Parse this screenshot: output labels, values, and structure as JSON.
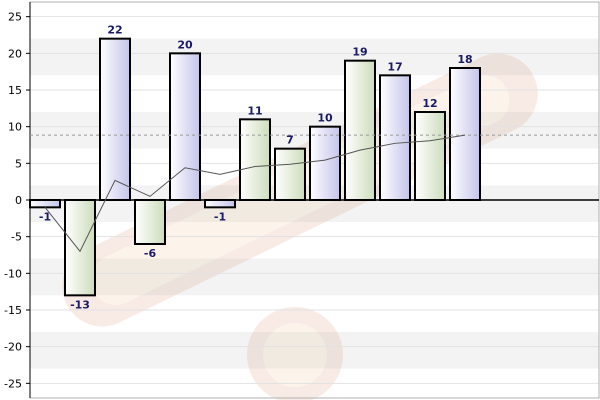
{
  "chart_data": {
    "type": "bar",
    "title": "",
    "xlabel": "",
    "ylabel": "",
    "ylim": [
      -27,
      27
    ],
    "yticks": [
      -25,
      -20,
      -15,
      -10,
      -5,
      0,
      5,
      10,
      15,
      20,
      25
    ],
    "values": [
      -1,
      -13,
      22,
      -6,
      20,
      -1,
      11,
      7,
      10,
      19,
      17,
      12,
      18
    ],
    "bar_colors": [
      "blue",
      "green",
      "blue",
      "green",
      "blue",
      "blue",
      "green",
      "green",
      "blue",
      "green",
      "blue",
      "green",
      "blue"
    ],
    "running_average": [
      -1,
      -7,
      2.67,
      0.5,
      4.4,
      3.5,
      4.57,
      4.88,
      5.44,
      6.8,
      7.73,
      8.08,
      8.85
    ],
    "average_line": 8.85,
    "grid": true,
    "legend": "none",
    "colors": {
      "blue_bar_light": "#ffffff",
      "blue_bar_dark": "#c4c4ea",
      "green_bar_light": "#ffffff",
      "green_bar_dark": "#cddcbb",
      "bar_stroke": "#000000",
      "label_color": "#1a1a66",
      "band_light": "#ffffff",
      "band_dark": "#f3f3f3",
      "avg_line": "#999999",
      "running_line": "#555555"
    }
  }
}
